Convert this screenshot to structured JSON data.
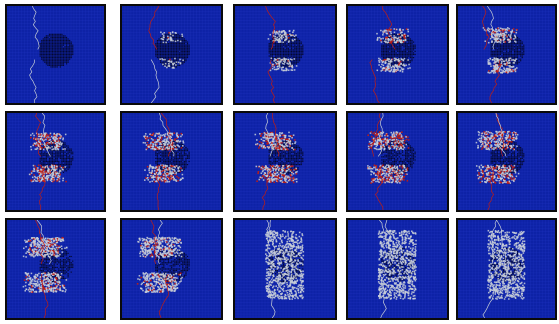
{
  "figure": {
    "grid": {
      "rows": 3,
      "cols": 5
    },
    "colors": {
      "background": "#0d22a6",
      "mesh": "#2437c4",
      "inclusion": "#04082e",
      "damage": "#c9cfd8",
      "crack": "#c21d12",
      "frame": "#0a0a0a"
    },
    "panels": [
      {
        "id": 1,
        "damage": 0.0,
        "red": 0.0,
        "inclusion": 1.0
      },
      {
        "id": 2,
        "damage": 0.08,
        "red": 0.05,
        "inclusion": 1.0
      },
      {
        "id": 3,
        "damage": 0.2,
        "red": 0.18,
        "inclusion": 0.95
      },
      {
        "id": 4,
        "damage": 0.3,
        "red": 0.28,
        "inclusion": 0.9
      },
      {
        "id": 5,
        "damage": 0.38,
        "red": 0.34,
        "inclusion": 0.88
      },
      {
        "id": 6,
        "damage": 0.5,
        "red": 0.55,
        "inclusion": 0.82
      },
      {
        "id": 7,
        "damage": 0.52,
        "red": 0.52,
        "inclusion": 0.8
      },
      {
        "id": 8,
        "damage": 0.56,
        "red": 0.58,
        "inclusion": 0.78
      },
      {
        "id": 9,
        "damage": 0.6,
        "red": 0.6,
        "inclusion": 0.76
      },
      {
        "id": 10,
        "damage": 0.62,
        "red": 0.55,
        "inclusion": 0.74
      },
      {
        "id": 11,
        "damage": 0.7,
        "red": 0.4,
        "inclusion": 0.7
      },
      {
        "id": 12,
        "damage": 0.72,
        "red": 0.25,
        "inclusion": 0.66
      },
      {
        "id": 13,
        "damage": 0.78,
        "red": 0.0,
        "inclusion": 0.55
      },
      {
        "id": 14,
        "damage": 0.82,
        "red": 0.0,
        "inclusion": 0.5
      },
      {
        "id": 15,
        "damage": 0.8,
        "red": 0.0,
        "inclusion": 0.58
      }
    ]
  }
}
